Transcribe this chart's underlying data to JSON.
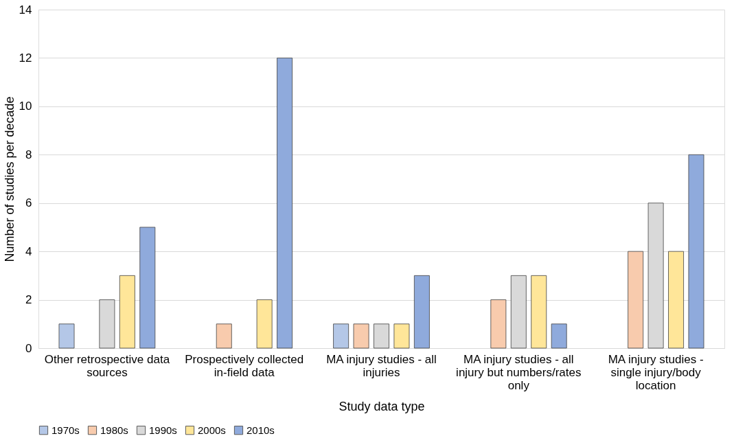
{
  "chart_data": {
    "type": "bar",
    "xlabel": "Study data type",
    "ylabel": "Number of studies per decade",
    "categories": [
      "Other retrospective data sources",
      "Prospectively collected in-field data",
      "MA injury studies - all injuries",
      "MA injury studies - all injury but numbers/rates only",
      "MA injury studies - single injury/body location"
    ],
    "series": [
      {
        "name": "1970s",
        "color": "#b4c7e7",
        "values": [
          1,
          0,
          1,
          0,
          0
        ]
      },
      {
        "name": "1980s",
        "color": "#f8cbad",
        "values": [
          0,
          1,
          1,
          2,
          4
        ]
      },
      {
        "name": "1990s",
        "color": "#d9d9d9",
        "values": [
          2,
          0,
          1,
          3,
          6
        ]
      },
      {
        "name": "2000s",
        "color": "#ffe699",
        "values": [
          3,
          2,
          1,
          3,
          4
        ]
      },
      {
        "name": "2010s",
        "color": "#8faadc",
        "values": [
          5,
          12,
          3,
          1,
          8
        ]
      }
    ],
    "ylim": [
      0,
      14
    ],
    "yticks": [
      0,
      2,
      4,
      6,
      8,
      10,
      12,
      14
    ],
    "grid": "y",
    "legend": "bottom"
  }
}
